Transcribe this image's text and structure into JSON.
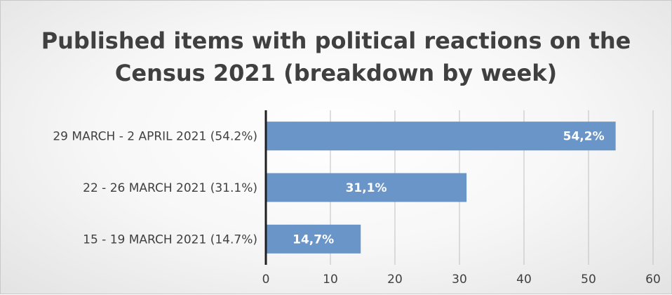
{
  "chart_data": {
    "type": "bar",
    "orientation": "horizontal",
    "title_lines": [
      "Published items with political reactions on the",
      "Census 2021 (breakdown by week)"
    ],
    "categories": [
      "29 MARCH - 2 APRIL 2021 (54.2%)",
      "22 - 26 MARCH 2021 (31.1%)",
      "15 - 19 MARCH 2021 (14.7%)"
    ],
    "values": [
      54.2,
      31.1,
      14.7
    ],
    "data_labels": [
      "54,2%",
      "31,1%",
      "14,7%"
    ],
    "xticks": [
      "0",
      "10",
      "20",
      "30",
      "40",
      "50",
      "60"
    ],
    "xlim": [
      0,
      60
    ],
    "grid": "vertical",
    "bar_color": "#6a95c8",
    "axis_color": "#1f1f1f",
    "grid_color": "#bfbfbf",
    "text_color": "#404040"
  }
}
